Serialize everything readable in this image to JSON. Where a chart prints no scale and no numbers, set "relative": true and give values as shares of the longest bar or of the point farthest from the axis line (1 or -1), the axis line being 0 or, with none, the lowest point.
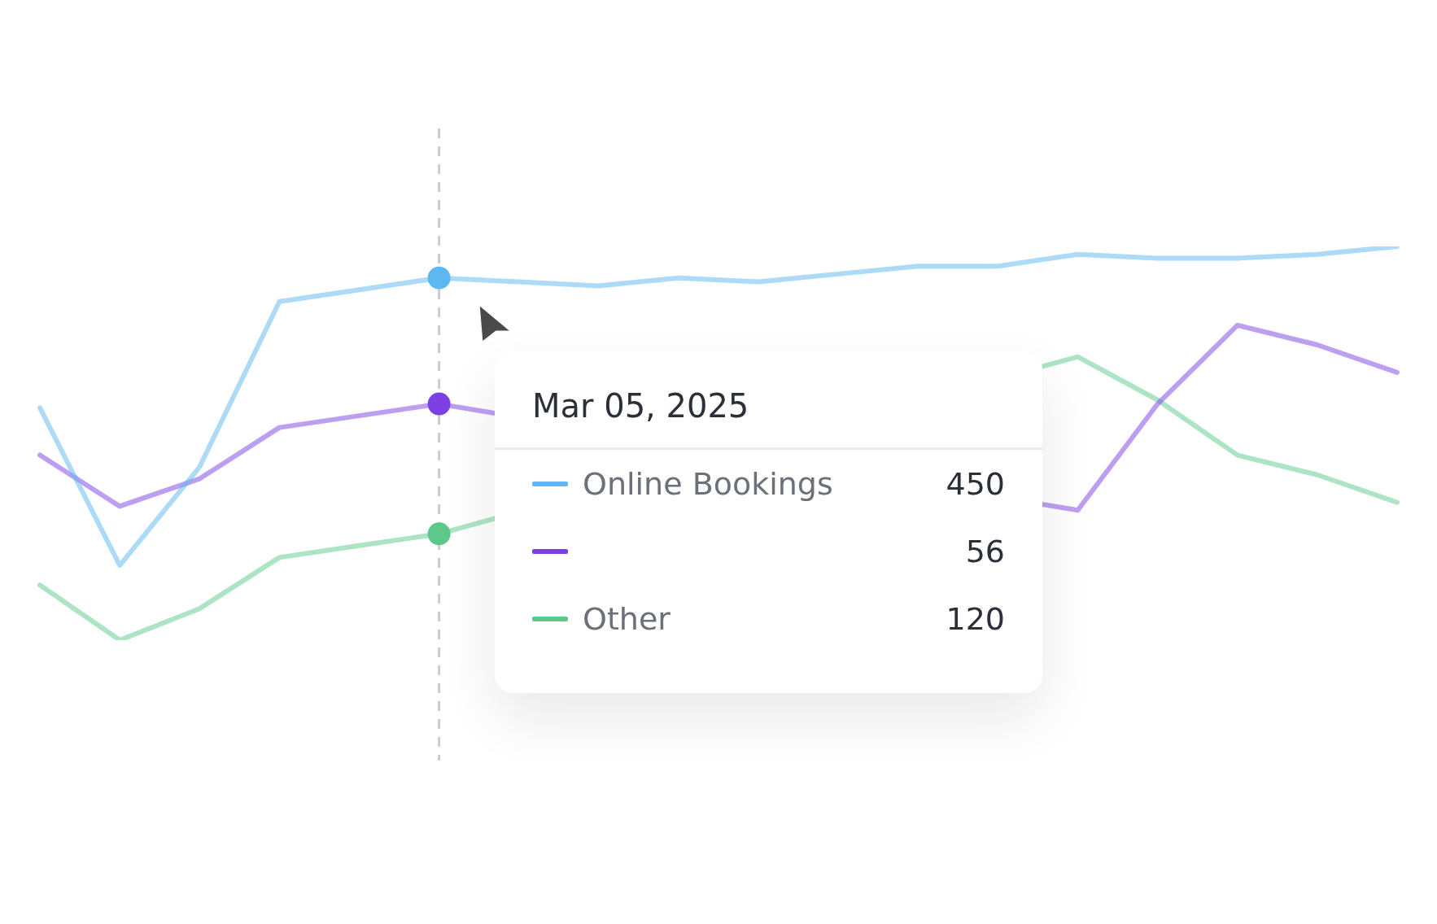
{
  "chart_data": {
    "type": "line",
    "relative": true,
    "categories": [
      null,
      null,
      null,
      null,
      null,
      null,
      null,
      null,
      null,
      null,
      null,
      null,
      null,
      null,
      null,
      null,
      null,
      null
    ],
    "legend": "right",
    "marker": "none",
    "line_style": "solid",
    "series": [
      {
        "name": "Online Bookings",
        "color": "#5bb8f0",
        "values": [
          0.59,
          0.19,
          0.44,
          0.86,
          0.89,
          0.92,
          0.91,
          0.9,
          0.92,
          0.91,
          0.93,
          0.95,
          0.95,
          0.98,
          0.97,
          0.97,
          0.98,
          1.0
        ]
      },
      {
        "color": "#7c3fe4",
        "values": [
          0.47,
          0.34,
          0.41,
          0.54,
          0.57,
          0.6,
          null,
          null,
          null,
          null,
          null,
          null,
          null,
          0.33,
          0.6,
          0.8,
          0.75,
          0.68
        ]
      },
      {
        "name": "Other",
        "color": "#5cc98a",
        "values": [
          0.14,
          0,
          0.08,
          0.21,
          0.24,
          0.27,
          null,
          null,
          null,
          null,
          null,
          null,
          null,
          0.72,
          0.61,
          0.47,
          0.42,
          0.35
        ]
      }
    ],
    "annotations": [
      "Mar 05, 2025",
      "450",
      "56",
      "120"
    ]
  }
}
